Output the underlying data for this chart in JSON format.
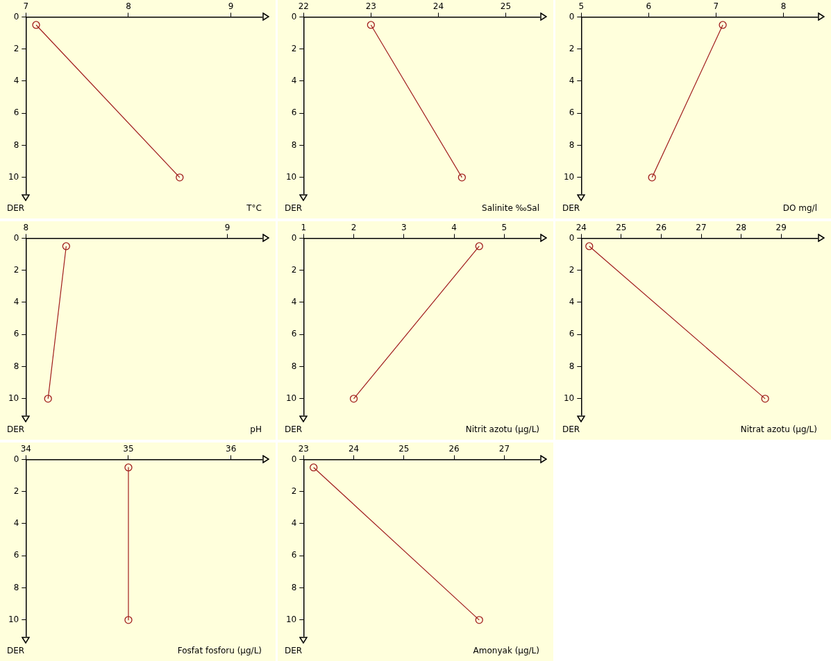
{
  "chart_data": [
    {
      "type": "line",
      "xlabel": "T°C",
      "ylabel": "DER",
      "x": [
        7.1,
        8.5
      ],
      "values": [
        0.5,
        10
      ],
      "color": "#a01c1c",
      "marker": "circle",
      "xlim": [
        7,
        9.3
      ],
      "xticks": [
        7,
        8,
        9
      ],
      "ylim": [
        11,
        0
      ],
      "yticks": [
        0,
        2,
        4,
        6,
        8,
        10
      ]
    },
    {
      "type": "line",
      "xlabel": "Salinite ‰Sal",
      "ylabel": "DER",
      "x": [
        23.0,
        24.35
      ],
      "values": [
        0.5,
        10
      ],
      "color": "#a01c1c",
      "marker": "circle",
      "xlim": [
        22,
        25.5
      ],
      "xticks": [
        22,
        23,
        24,
        25
      ],
      "ylim": [
        11,
        0
      ],
      "yticks": [
        0,
        2,
        4,
        6,
        8,
        10
      ]
    },
    {
      "type": "line",
      "xlabel": "DO mg/l",
      "ylabel": "DER",
      "x": [
        7.1,
        6.05
      ],
      "values": [
        0.5,
        10
      ],
      "color": "#a01c1c",
      "marker": "circle",
      "xlim": [
        5,
        8.5
      ],
      "xticks": [
        5,
        6,
        7,
        8
      ],
      "ylim": [
        11,
        0
      ],
      "yticks": [
        0,
        2,
        4,
        6,
        8,
        10
      ]
    },
    {
      "type": "line",
      "xlabel": "pH",
      "ylabel": "DER",
      "x": [
        8.2,
        8.11
      ],
      "values": [
        0.5,
        10
      ],
      "color": "#a01c1c",
      "marker": "circle",
      "xlim": [
        8,
        9.17
      ],
      "xticks": [
        8,
        9
      ],
      "ylim": [
        11,
        0
      ],
      "yticks": [
        0,
        2,
        4,
        6,
        8,
        10
      ]
    },
    {
      "type": "line",
      "xlabel": "Nitrit azotu (µg/L)",
      "ylabel": "DER",
      "x": [
        4.5,
        2.0
      ],
      "values": [
        0.5,
        10
      ],
      "color": "#a01c1c",
      "marker": "circle",
      "xlim": [
        1,
        5.7
      ],
      "xticks": [
        1,
        2,
        3,
        4,
        5
      ],
      "ylim": [
        11,
        0
      ],
      "yticks": [
        0,
        2,
        4,
        6,
        8,
        10
      ]
    },
    {
      "type": "line",
      "xlabel": "Nitrat azotu (µg/L)",
      "ylabel": "DER",
      "x": [
        24.2,
        28.6
      ],
      "values": [
        0.5,
        10
      ],
      "color": "#a01c1c",
      "marker": "circle",
      "xlim": [
        24,
        29.9
      ],
      "xticks": [
        24,
        25,
        26,
        27,
        28,
        29
      ],
      "ylim": [
        11,
        0
      ],
      "yticks": [
        0,
        2,
        4,
        6,
        8,
        10
      ]
    },
    {
      "type": "line",
      "xlabel": "Fosfat fosforu (µg/L)",
      "ylabel": "DER",
      "x": [
        35.0,
        35.0
      ],
      "values": [
        0.5,
        10
      ],
      "color": "#a01c1c",
      "marker": "circle",
      "xlim": [
        34,
        36.3
      ],
      "xticks": [
        34,
        35,
        36
      ],
      "ylim": [
        11,
        0
      ],
      "yticks": [
        0,
        2,
        4,
        6,
        8,
        10
      ]
    },
    {
      "type": "line",
      "xlabel": "Amonyak (µg/L)",
      "ylabel": "DER",
      "x": [
        23.2,
        26.5
      ],
      "values": [
        0.5,
        10
      ],
      "color": "#a01c1c",
      "marker": "circle",
      "xlim": [
        23,
        27.7
      ],
      "xticks": [
        23,
        24,
        25,
        26,
        27
      ],
      "ylim": [
        11,
        0
      ],
      "yticks": [
        0,
        2,
        4,
        6,
        8,
        10
      ]
    }
  ]
}
